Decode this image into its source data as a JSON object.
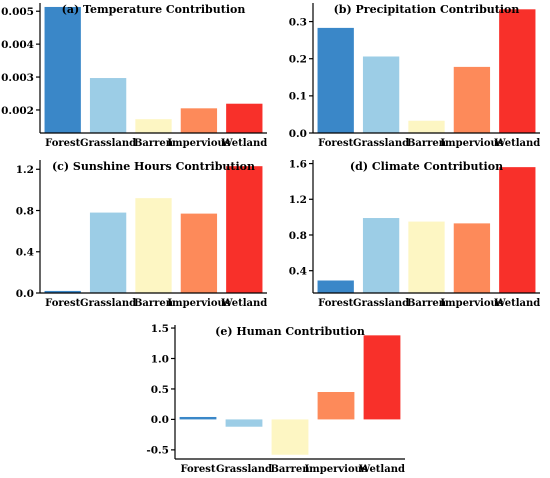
{
  "colors": {
    "Forest": "#3a87c8",
    "Grassland": "#9ccde6",
    "Barren": "#fdf6c3",
    "Impervious": "#fd8a5a",
    "Wetland": "#f8302a"
  },
  "chart_data": [
    {
      "type": "bar",
      "title": "(a) Temperature Contribution",
      "categories": [
        "Forest",
        "Grassland",
        "Barren",
        "Impervious",
        "Wetland"
      ],
      "values": [
        0.00513,
        0.00297,
        0.00172,
        0.00205,
        0.00219
      ],
      "ylim": [
        0.0013,
        0.00525
      ],
      "yticks": [
        0.002,
        0.003,
        0.004,
        0.005
      ],
      "ytick_labels": [
        "0.002",
        "0.003",
        "0.004",
        "0.005"
      ],
      "grid": false
    },
    {
      "type": "bar",
      "title": "(b) Precipitation Contribution",
      "categories": [
        "Forest",
        "Grassland",
        "Barren",
        "Impervious",
        "Wetland"
      ],
      "values": [
        0.283,
        0.206,
        0.033,
        0.178,
        0.333
      ],
      "ylim": [
        0,
        0.35
      ],
      "yticks": [
        0,
        0.1,
        0.2,
        0.3
      ],
      "ytick_labels": [
        "0.0",
        "0.1",
        "0.2",
        "0.3"
      ],
      "grid": false
    },
    {
      "type": "bar",
      "title": "(c) Sunshine Hours Contribution",
      "categories": [
        "Forest",
        "Grassland",
        "Barren",
        "Impervious",
        "Wetland"
      ],
      "values": [
        0.02,
        0.78,
        0.92,
        0.77,
        1.23
      ],
      "ylim": [
        0,
        1.29
      ],
      "yticks": [
        0,
        0.4,
        0.8,
        1.2
      ],
      "ytick_labels": [
        "0.0",
        "0.4",
        "0.8",
        "1.2"
      ],
      "grid": false
    },
    {
      "type": "bar",
      "title": "(d) Climate Contribution",
      "categories": [
        "Forest",
        "Grassland",
        "Barren",
        "Impervious",
        "Wetland"
      ],
      "values": [
        0.29,
        0.99,
        0.95,
        0.93,
        1.56
      ],
      "ylim": [
        0.15,
        1.64
      ],
      "yticks": [
        0.4,
        0.8,
        1.2,
        1.6
      ],
      "ytick_labels": [
        "0.4",
        "0.8",
        "1.2",
        "1.6"
      ],
      "grid": false
    },
    {
      "type": "bar",
      "title": "(e) Human Contribution",
      "categories": [
        "Forest",
        "Grassland",
        "Barren",
        "Impervious",
        "Wetland"
      ],
      "values": [
        0.04,
        -0.12,
        -0.58,
        0.45,
        1.38
      ],
      "ylim": [
        -0.65,
        1.55
      ],
      "yticks": [
        -0.5,
        0,
        0.5,
        1.0,
        1.5
      ],
      "ytick_labels": [
        "-0.5",
        "0.0",
        "0.5",
        "1.0",
        "1.5"
      ],
      "grid": false
    }
  ]
}
